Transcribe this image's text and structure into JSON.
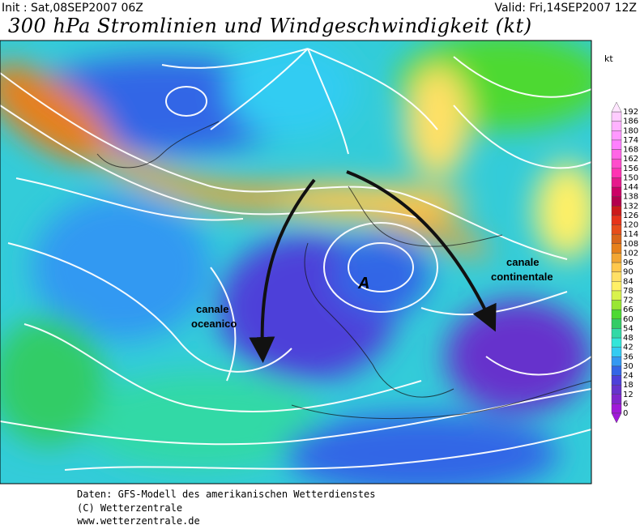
{
  "header": {
    "init": "Init : Sat,08SEP2007 06Z",
    "valid": "Valid: Fri,14SEP2007 12Z",
    "title": "300 hPa Stromlinien und Windgeschwindigkeit (kt)"
  },
  "colorbar": {
    "unit": "kt",
    "levels": [
      0,
      6,
      12,
      18,
      24,
      30,
      36,
      42,
      48,
      54,
      60,
      66,
      72,
      78,
      84,
      90,
      96,
      102,
      108,
      114,
      120,
      126,
      132,
      138,
      144,
      150,
      156,
      162,
      168,
      174,
      180,
      186,
      192
    ],
    "colors": [
      "#a019d9",
      "#8026cc",
      "#6633cc",
      "#4d40d9",
      "#3366e6",
      "#3399f2",
      "#33ccf2",
      "#33e6d9",
      "#33d9a6",
      "#33cc66",
      "#4dd933",
      "#99e633",
      "#d9f24d",
      "#fff066",
      "#ffe066",
      "#ffc84d",
      "#f2a633",
      "#e6801a",
      "#d9661a",
      "#e64d1a",
      "#e63319",
      "#cc1a1a",
      "#b3004d",
      "#cc0066",
      "#e6198c",
      "#ff33b3",
      "#ff4dcc",
      "#ff66e6",
      "#ff80ff",
      "#ff99ff",
      "#ffb3ff",
      "#ffccff",
      "#ffe6ff"
    ]
  },
  "annotations": {
    "oceanic": [
      "canale",
      "oceanico"
    ],
    "continental": [
      "canale",
      "continentale"
    ],
    "anticyclone": "A"
  },
  "footer": [
    "Daten: GFS-Modell des amerikanischen Wetterdienstes",
    "(C) Wetterzentrale",
    "www.wetterzentrale.de"
  ]
}
